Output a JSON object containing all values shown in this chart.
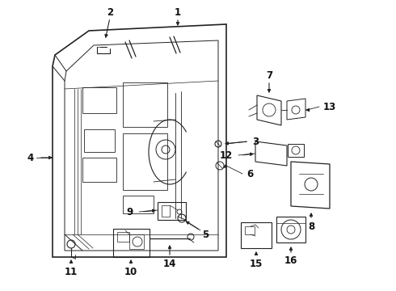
{
  "background": "#ffffff",
  "line_color": "#222222",
  "fig_width": 4.9,
  "fig_height": 3.6,
  "dpi": 100,
  "label_fontsize": 8.5,
  "label_fontweight": "bold",
  "label_color": "#111111"
}
